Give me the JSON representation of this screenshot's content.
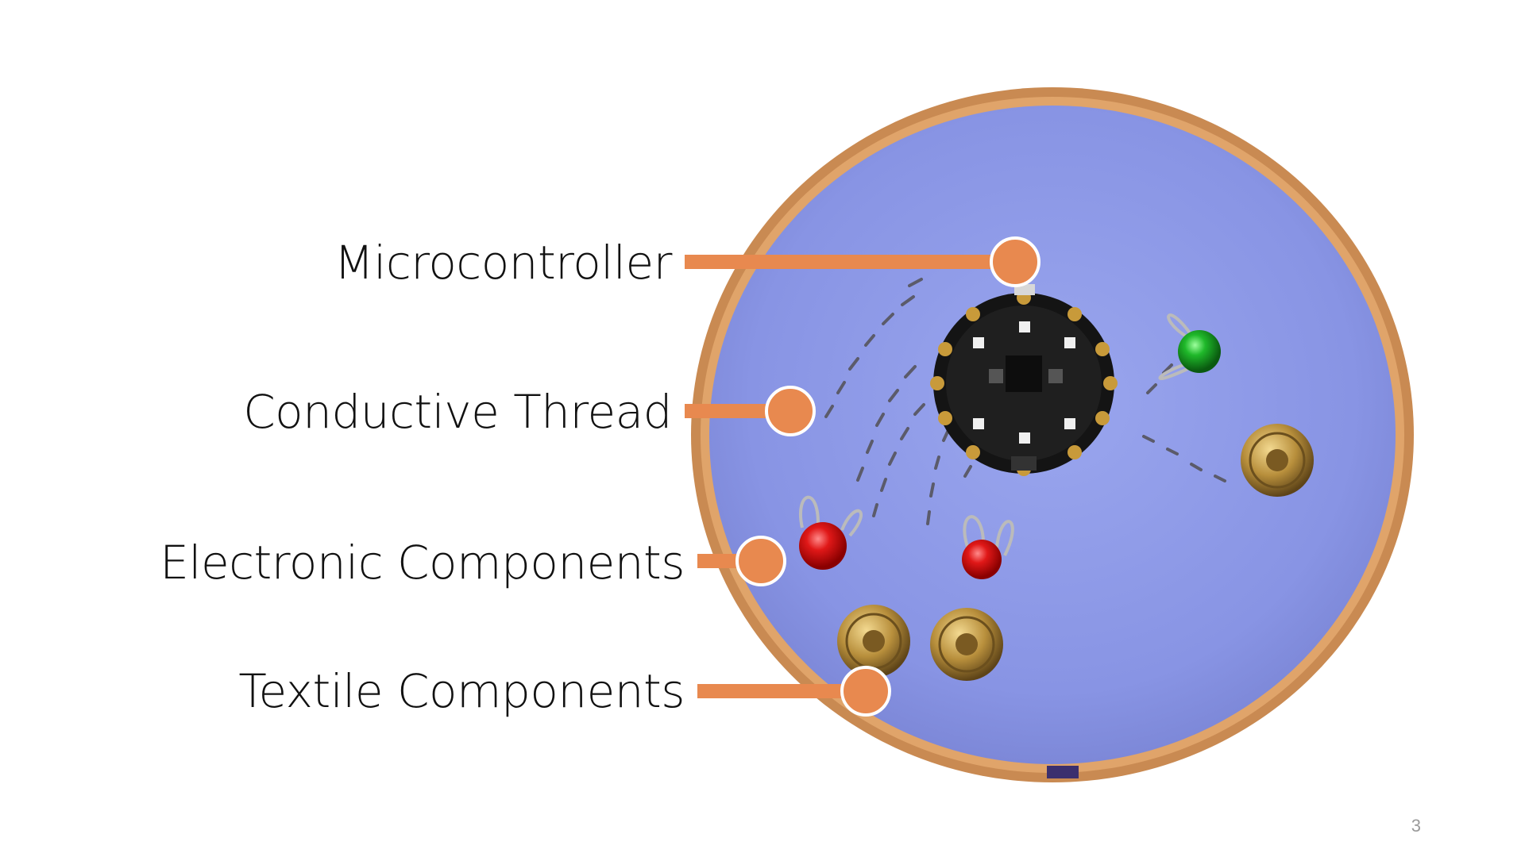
{
  "slide": {
    "labels": {
      "microcontroller": "Microcontroller",
      "conductive_thread": "Conductive Thread",
      "electronic_components": "Electronic Components",
      "textile_components": "Textile Components"
    },
    "page_number": "3"
  },
  "colors": {
    "callout": "#e8894f",
    "felt": "#8f9be8",
    "hoop": "#c98a52",
    "text": "#111111"
  }
}
